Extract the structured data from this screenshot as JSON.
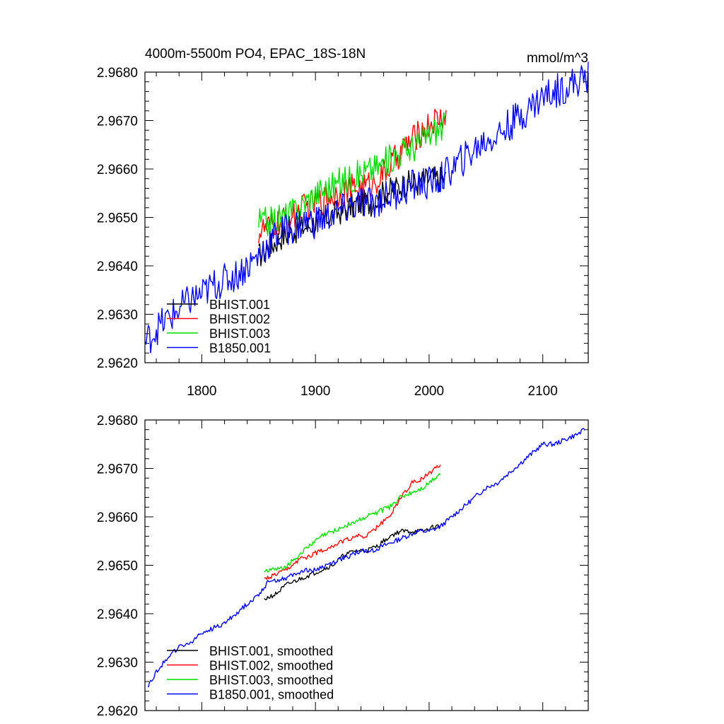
{
  "chart_data": [
    {
      "type": "line",
      "title": "4000m-5500m PO4, EPAC_18S-18N",
      "units": "mmol/m^3",
      "xlim": [
        1750,
        2140
      ],
      "ylim": [
        2.962,
        2.968
      ],
      "xticks": [
        1800,
        1900,
        2000,
        2100
      ],
      "xtick_labels": [
        "1800",
        "1900",
        "2000",
        "2100"
      ],
      "yticks": [
        2.962,
        2.963,
        2.964,
        2.965,
        2.966,
        2.967,
        2.968
      ],
      "ytick_labels": [
        "2.9620",
        "2.9630",
        "2.9640",
        "2.9650",
        "2.9660",
        "2.9670",
        "2.9680"
      ],
      "legend_position": "bottom-left",
      "series": [
        {
          "name": "BHIST.001",
          "color": "#000000",
          "noise": 0.00028,
          "x": [
            1850,
            1860,
            1870,
            1880,
            1890,
            1900,
            1910,
            1920,
            1930,
            1940,
            1950,
            1960,
            1970,
            1980,
            1990,
            2000,
            2005,
            2015
          ],
          "y": [
            2.9642,
            2.9644,
            2.9646,
            2.9647,
            2.9648,
            2.9649,
            2.965,
            2.9651,
            2.9652,
            2.9653,
            2.9653,
            2.9655,
            2.9656,
            2.9657,
            2.9657,
            2.9658,
            2.9658,
            2.9658
          ]
        },
        {
          "name": "BHIST.002",
          "color": "#ff0000",
          "noise": 0.0003,
          "x": [
            1850,
            1860,
            1870,
            1880,
            1890,
            1900,
            1910,
            1920,
            1930,
            1940,
            1950,
            1960,
            1970,
            1980,
            1990,
            2000,
            2005,
            2015
          ],
          "y": [
            2.9647,
            2.9648,
            2.9649,
            2.965,
            2.9652,
            2.9653,
            2.9654,
            2.9655,
            2.9656,
            2.9656,
            2.9657,
            2.9659,
            2.9662,
            2.9665,
            2.9667,
            2.9669,
            2.967,
            2.9671
          ]
        },
        {
          "name": "BHIST.003",
          "color": "#00dd00",
          "noise": 0.00032,
          "x": [
            1850,
            1860,
            1870,
            1880,
            1890,
            1900,
            1910,
            1920,
            1930,
            1940,
            1950,
            1960,
            1970,
            1980,
            1990,
            2000,
            2005,
            2015
          ],
          "y": [
            2.9649,
            2.9649,
            2.965,
            2.9651,
            2.9653,
            2.9655,
            2.9656,
            2.9657,
            2.9658,
            2.9659,
            2.966,
            2.9661,
            2.9663,
            2.9664,
            2.9665,
            2.9667,
            2.9668,
            2.9669
          ]
        },
        {
          "name": "B1850.001",
          "color": "#0000ff",
          "noise": 0.00035,
          "x": [
            1750,
            1760,
            1770,
            1780,
            1790,
            1800,
            1810,
            1820,
            1830,
            1840,
            1850,
            1860,
            1870,
            1880,
            1890,
            1900,
            1910,
            1920,
            1930,
            1940,
            1950,
            1960,
            1970,
            1980,
            1990,
            2000,
            2010,
            2020,
            2030,
            2040,
            2050,
            2060,
            2070,
            2080,
            2090,
            2100,
            2110,
            2120,
            2130,
            2140
          ],
          "y": [
            2.9624,
            2.9627,
            2.9629,
            2.9631,
            2.9633,
            2.9634,
            2.9636,
            2.9637,
            2.9638,
            2.964,
            2.9642,
            2.9645,
            2.9647,
            2.9648,
            2.9649,
            2.9649,
            2.965,
            2.9651,
            2.9652,
            2.9653,
            2.9653,
            2.9654,
            2.9655,
            2.9656,
            2.9657,
            2.9657,
            2.9658,
            2.966,
            2.9662,
            2.9664,
            2.9666,
            2.9667,
            2.9669,
            2.9671,
            2.9673,
            2.9675,
            2.9676,
            2.9677,
            2.9678,
            2.9679
          ]
        }
      ]
    },
    {
      "type": "line",
      "xlim": [
        1750,
        2140
      ],
      "ylim": [
        2.962,
        2.968
      ],
      "xticks": [
        1800,
        1900,
        2000,
        2100
      ],
      "yticks": [
        2.962,
        2.963,
        2.964,
        2.965,
        2.966,
        2.967,
        2.968
      ],
      "ytick_labels": [
        "2.9620",
        "2.9630",
        "2.9640",
        "2.9650",
        "2.9660",
        "2.9670",
        "2.9680"
      ],
      "legend_position": "bottom-left",
      "series": [
        {
          "name": "BHIST.001, smoothed",
          "color": "#000000",
          "noise": 5e-05,
          "x": [
            1855,
            1865,
            1875,
            1885,
            1895,
            1905,
            1915,
            1925,
            1935,
            1945,
            1955,
            1965,
            1975,
            1985,
            1995,
            2005,
            2010
          ],
          "y": [
            2.9643,
            2.9644,
            2.9646,
            2.9647,
            2.9648,
            2.9649,
            2.965,
            2.9652,
            2.9653,
            2.9653,
            2.9654,
            2.9656,
            2.9657,
            2.9657,
            2.9657,
            2.9658,
            2.9658
          ]
        },
        {
          "name": "BHIST.002, smoothed",
          "color": "#ff0000",
          "noise": 5e-05,
          "x": [
            1855,
            1865,
            1875,
            1885,
            1895,
            1905,
            1915,
            1925,
            1935,
            1945,
            1955,
            1965,
            1975,
            1985,
            1995,
            2005,
            2010
          ],
          "y": [
            2.9647,
            2.9648,
            2.9649,
            2.9651,
            2.9652,
            2.9653,
            2.9654,
            2.9655,
            2.9656,
            2.9656,
            2.9658,
            2.966,
            2.9664,
            2.9667,
            2.9668,
            2.967,
            2.9671
          ]
        },
        {
          "name": "BHIST.003, smoothed",
          "color": "#00dd00",
          "noise": 5e-05,
          "x": [
            1855,
            1865,
            1875,
            1885,
            1895,
            1905,
            1915,
            1925,
            1935,
            1945,
            1955,
            1965,
            1975,
            1985,
            1995,
            2005,
            2010
          ],
          "y": [
            2.9649,
            2.9649,
            2.965,
            2.9652,
            2.9654,
            2.9656,
            2.9657,
            2.9658,
            2.9659,
            2.966,
            2.9661,
            2.9662,
            2.9664,
            2.9665,
            2.9666,
            2.9668,
            2.9669
          ]
        },
        {
          "name": "B1850.001, smoothed",
          "color": "#0000ff",
          "noise": 5e-05,
          "x": [
            1753,
            1760,
            1770,
            1780,
            1790,
            1800,
            1810,
            1820,
            1830,
            1840,
            1850,
            1860,
            1870,
            1880,
            1890,
            1900,
            1910,
            1920,
            1930,
            1940,
            1950,
            1960,
            1970,
            1980,
            1990,
            2000,
            2010,
            2020,
            2030,
            2040,
            2050,
            2060,
            2070,
            2080,
            2090,
            2100,
            2110,
            2120,
            2130,
            2137
          ],
          "y": [
            2.9625,
            2.9628,
            2.9631,
            2.9633,
            2.9634,
            2.9636,
            2.9637,
            2.9638,
            2.964,
            2.9642,
            2.9644,
            2.9647,
            2.9647,
            2.9648,
            2.9649,
            2.9649,
            2.965,
            2.9651,
            2.9652,
            2.9653,
            2.9653,
            2.9654,
            2.9655,
            2.9656,
            2.9657,
            2.9657,
            2.9658,
            2.966,
            2.9662,
            2.9664,
            2.9666,
            2.9667,
            2.9669,
            2.9671,
            2.9673,
            2.9675,
            2.9675,
            2.9676,
            2.9677,
            2.9678
          ]
        }
      ]
    }
  ]
}
